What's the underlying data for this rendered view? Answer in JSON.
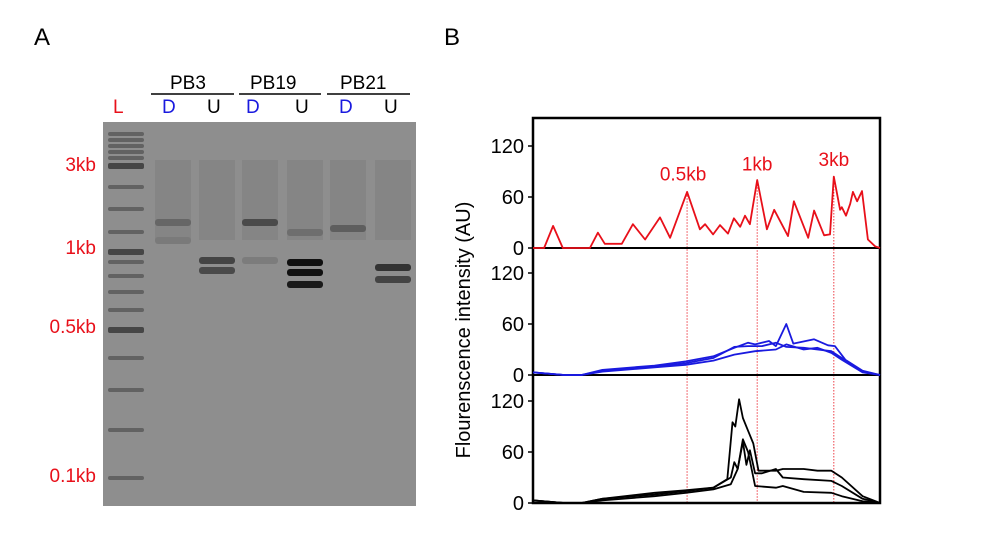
{
  "panels": {
    "a": "A",
    "b": "B"
  },
  "gel": {
    "ladder_label": "L",
    "groups": [
      {
        "name": "PB3",
        "lanes": [
          "D",
          "U"
        ]
      },
      {
        "name": "PB19",
        "lanes": [
          "D",
          "U"
        ]
      },
      {
        "name": "PB21",
        "lanes": [
          "D",
          "U"
        ]
      }
    ],
    "size_markers": [
      "3kb",
      "1kb",
      "0.5kb",
      "0.1kb"
    ],
    "colors": {
      "ladder": "#e8101a",
      "D": "#1a1adf",
      "U": "#000000",
      "markers": "#e8101a"
    }
  },
  "chart_data": {
    "type": "line",
    "ylabel": "Flourenscence intensity (AU)",
    "yticks": [
      "0",
      "60",
      "120"
    ],
    "ylim": [
      0,
      150
    ],
    "xlim": [
      0,
      100
    ],
    "grid": false,
    "marker_lines": [
      {
        "label": "0.5kb",
        "x": 44.4
      },
      {
        "label": "1kb",
        "x": 64.6
      },
      {
        "label": "3kb",
        "x": 86.7
      }
    ],
    "subplots": [
      {
        "color": "#e8101a",
        "series": [
          {
            "points": [
              [
                0,
                0
              ],
              [
                3.2,
                0
              ],
              [
                5.8,
                26
              ],
              [
                8.6,
                0
              ],
              [
                16.4,
                0
              ],
              [
                18.7,
                18
              ],
              [
                20.7,
                5
              ],
              [
                25.6,
                5
              ],
              [
                28.8,
                28
              ],
              [
                32.3,
                10
              ],
              [
                36.6,
                36
              ],
              [
                39.5,
                12
              ],
              [
                44.4,
                66
              ],
              [
                48.1,
                22
              ],
              [
                49.6,
                28
              ],
              [
                51.9,
                16
              ],
              [
                53.9,
                27
              ],
              [
                56.2,
                17
              ],
              [
                57.9,
                35
              ],
              [
                59.7,
                25
              ],
              [
                61.1,
                38
              ],
              [
                62.5,
                28
              ],
              [
                64.6,
                80
              ],
              [
                67.4,
                22
              ],
              [
                69.5,
                45
              ],
              [
                73.5,
                14
              ],
              [
                75.2,
                55
              ],
              [
                79.3,
                12
              ],
              [
                81.0,
                44
              ],
              [
                83.9,
                15
              ],
              [
                85.6,
                16
              ],
              [
                86.7,
                84
              ],
              [
                88.5,
                45
              ],
              [
                89.0,
                48
              ],
              [
                90.2,
                38
              ],
              [
                91.4,
                52
              ],
              [
                92.2,
                66
              ],
              [
                93.4,
                55
              ],
              [
                94.8,
                67
              ],
              [
                96.5,
                10
              ],
              [
                98.6,
                2
              ],
              [
                100,
                0
              ]
            ]
          }
        ]
      },
      {
        "color": "#1a1adf",
        "series": [
          {
            "points": [
              [
                0,
                3
              ],
              [
                9,
                0
              ],
              [
                14,
                0
              ],
              [
                20,
                6
              ],
              [
                35,
                11
              ],
              [
                44,
                16
              ],
              [
                52,
                22
              ],
              [
                58,
                32
              ],
              [
                62,
                38
              ],
              [
                64,
                36
              ],
              [
                68,
                40
              ],
              [
                70,
                34
              ],
              [
                73,
                60
              ],
              [
                75,
                37
              ],
              [
                81,
                42
              ],
              [
                85,
                35
              ],
              [
                87,
                34
              ],
              [
                90,
                18
              ],
              [
                95,
                5
              ],
              [
                100,
                0
              ]
            ]
          },
          {
            "points": [
              [
                0,
                3
              ],
              [
                9,
                0
              ],
              [
                14,
                0
              ],
              [
                20,
                5
              ],
              [
                35,
                10
              ],
              [
                44,
                14
              ],
              [
                52,
                20
              ],
              [
                58,
                33
              ],
              [
                62,
                34
              ],
              [
                66,
                34
              ],
              [
                70,
                38
              ],
              [
                73,
                33
              ],
              [
                78,
                32
              ],
              [
                82,
                30
              ],
              [
                86,
                28
              ],
              [
                89,
                20
              ],
              [
                95,
                4
              ],
              [
                100,
                0
              ]
            ]
          },
          {
            "points": [
              [
                0,
                3
              ],
              [
                9,
                0
              ],
              [
                14,
                0
              ],
              [
                20,
                4
              ],
              [
                35,
                9
              ],
              [
                44,
                12
              ],
              [
                52,
                17
              ],
              [
                58,
                24
              ],
              [
                64,
                28
              ],
              [
                70,
                30
              ],
              [
                73,
                36
              ],
              [
                78,
                30
              ],
              [
                82,
                32
              ],
              [
                86,
                26
              ],
              [
                89,
                18
              ],
              [
                95,
                3
              ],
              [
                100,
                0
              ]
            ]
          }
        ]
      },
      {
        "color": "#000000",
        "series": [
          {
            "points": [
              [
                0,
                3
              ],
              [
                9,
                0
              ],
              [
                14,
                0
              ],
              [
                20,
                5
              ],
              [
                35,
                10
              ],
              [
                44,
                14
              ],
              [
                52,
                18
              ],
              [
                56,
                28
              ],
              [
                57.5,
                95
              ],
              [
                58.3,
                90
              ],
              [
                59.4,
                122
              ],
              [
                60.5,
                100
              ],
              [
                62,
                85
              ],
              [
                63.5,
                70
              ],
              [
                65,
                38
              ],
              [
                70,
                38
              ],
              [
                72,
                40
              ],
              [
                78,
                40
              ],
              [
                82,
                38
              ],
              [
                86,
                38
              ],
              [
                89,
                30
              ],
              [
                95,
                8
              ],
              [
                100,
                0
              ]
            ]
          },
          {
            "points": [
              [
                0,
                3
              ],
              [
                9,
                0
              ],
              [
                14,
                0
              ],
              [
                20,
                5
              ],
              [
                35,
                12
              ],
              [
                44,
                15
              ],
              [
                52,
                18
              ],
              [
                57,
                30
              ],
              [
                58,
                48
              ],
              [
                59,
                40
              ],
              [
                60.5,
                72
              ],
              [
                61.5,
                45
              ],
              [
                62.5,
                62
              ],
              [
                64,
                35
              ],
              [
                66,
                35
              ],
              [
                70,
                40
              ],
              [
                72,
                30
              ],
              [
                78,
                28
              ],
              [
                86,
                26
              ],
              [
                89,
                20
              ],
              [
                95,
                5
              ],
              [
                100,
                0
              ]
            ]
          },
          {
            "points": [
              [
                0,
                3
              ],
              [
                9,
                0
              ],
              [
                14,
                0
              ],
              [
                20,
                3
              ],
              [
                35,
                8
              ],
              [
                44,
                12
              ],
              [
                52,
                16
              ],
              [
                57,
                22
              ],
              [
                59,
                40
              ],
              [
                60.5,
                75
              ],
              [
                62,
                60
              ],
              [
                63,
                40
              ],
              [
                64,
                20
              ],
              [
                70,
                18
              ],
              [
                72,
                20
              ],
              [
                78,
                13
              ],
              [
                86,
                12
              ],
              [
                89,
                8
              ],
              [
                95,
                2
              ],
              [
                100,
                0
              ]
            ]
          }
        ]
      }
    ]
  }
}
